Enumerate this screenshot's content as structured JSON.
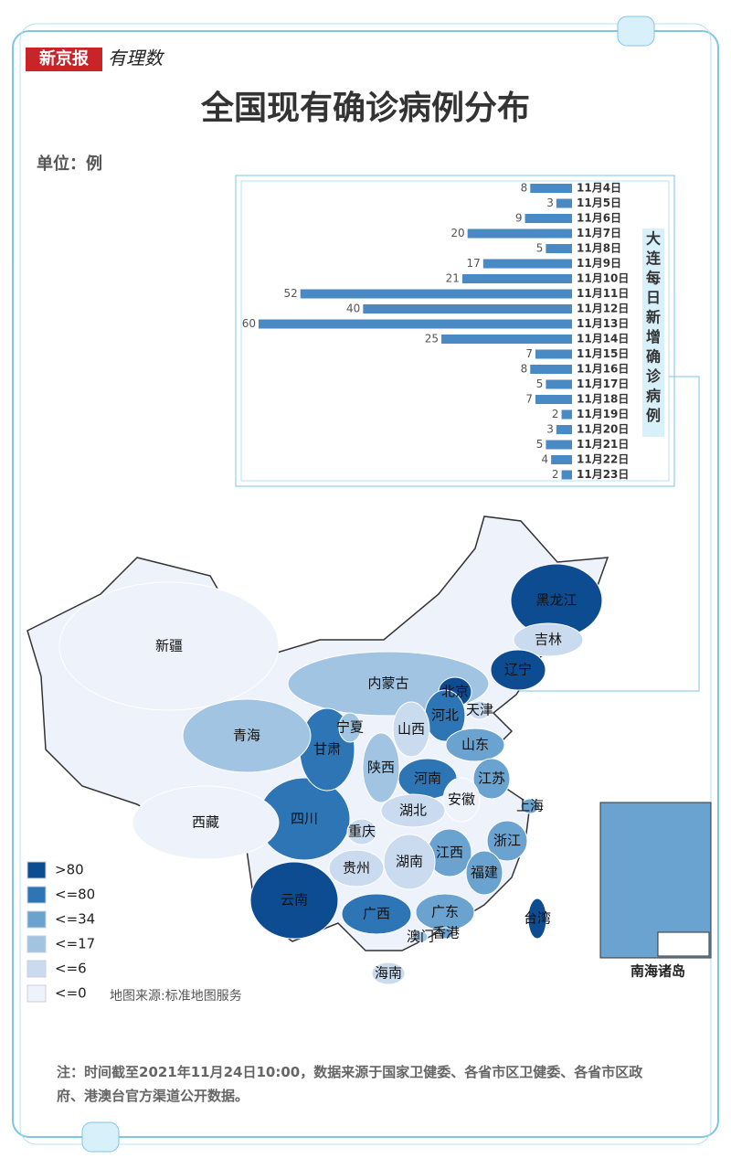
{
  "header": {
    "logo": "新京报",
    "logo2": "有理数",
    "title": "全国现有确诊病例分布",
    "unit": "单位：例"
  },
  "chart_data": {
    "type": "bar",
    "orientation": "horizontal",
    "title": "大连每日新增确诊病例",
    "color": "#4a8ac4",
    "categories": [
      "11月4日",
      "11月5日",
      "11月6日",
      "11月7日",
      "11月8日",
      "11月9日",
      "11月10日",
      "11月11日",
      "11月12日",
      "11月13日",
      "11月14日",
      "11月15日",
      "11月16日",
      "11月17日",
      "11月18日",
      "11月19日",
      "11月20日",
      "11月21日",
      "11月22日",
      "11月23日"
    ],
    "values": [
      8,
      3,
      9,
      20,
      5,
      17,
      21,
      52,
      40,
      60,
      25,
      7,
      8,
      5,
      7,
      2,
      3,
      5,
      4,
      2
    ],
    "xlim": [
      0,
      60
    ]
  },
  "map": {
    "legend": [
      {
        "label": ">80",
        "color": "#0e4c92"
      },
      {
        "label": "<=80",
        "color": "#2e75b6"
      },
      {
        "label": "<=34",
        "color": "#6aa3d0"
      },
      {
        "label": "<=17",
        "color": "#a0c4e2"
      },
      {
        "label": "<=6",
        "color": "#cadbef"
      },
      {
        "label": "<=0",
        "color": "#eef2fb"
      }
    ],
    "provinces": [
      {
        "name": "黑龙江",
        "color": "#0e4c92"
      },
      {
        "name": "吉林",
        "color": "#cadbef"
      },
      {
        "name": "辽宁",
        "color": "#0e4c92"
      },
      {
        "name": "内蒙古",
        "color": "#a0c4e2"
      },
      {
        "name": "北京",
        "color": "#0e4c92"
      },
      {
        "name": "天津",
        "color": "#cadbef"
      },
      {
        "name": "河北",
        "color": "#2e75b6"
      },
      {
        "name": "山西",
        "color": "#cadbef"
      },
      {
        "name": "山东",
        "color": "#6aa3d0"
      },
      {
        "name": "河南",
        "color": "#2e75b6"
      },
      {
        "name": "江苏",
        "color": "#6aa3d0"
      },
      {
        "name": "上海",
        "color": "#6aa3d0"
      },
      {
        "name": "安徽",
        "color": "#eef2fb"
      },
      {
        "name": "浙江",
        "color": "#6aa3d0"
      },
      {
        "name": "江西",
        "color": "#6aa3d0"
      },
      {
        "name": "福建",
        "color": "#6aa3d0"
      },
      {
        "name": "湖北",
        "color": "#cadbef"
      },
      {
        "name": "湖南",
        "color": "#cadbef"
      },
      {
        "name": "广东",
        "color": "#6aa3d0"
      },
      {
        "name": "广西",
        "color": "#2e75b6"
      },
      {
        "name": "海南",
        "color": "#cadbef"
      },
      {
        "name": "云南",
        "color": "#0e4c92"
      },
      {
        "name": "贵州",
        "color": "#cadbef"
      },
      {
        "name": "四川",
        "color": "#2e75b6"
      },
      {
        "name": "重庆",
        "color": "#cadbef"
      },
      {
        "name": "陕西",
        "color": "#a0c4e2"
      },
      {
        "name": "甘肃",
        "color": "#2e75b6"
      },
      {
        "name": "宁夏",
        "color": "#a0c4e2"
      },
      {
        "name": "青海",
        "color": "#a0c4e2"
      },
      {
        "name": "西藏",
        "color": "#eef2fb"
      },
      {
        "name": "新疆",
        "color": "#eef2fb"
      },
      {
        "name": "台湾",
        "color": "#0e4c92"
      },
      {
        "name": "香港",
        "color": "#6aa3d0"
      },
      {
        "name": "澳门",
        "color": "#a0c4e2"
      }
    ],
    "source": "地图来源:标准地图服务",
    "inset_label": "南海诸岛"
  },
  "note": "注：时间截至2021年11月24日10:00，数据来源于国家卫健委、各省市区卫健委、各省市区政府、港澳台官方渠道公开数据。"
}
